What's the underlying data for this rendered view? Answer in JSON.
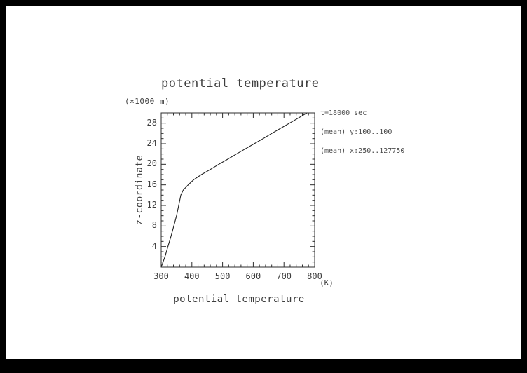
{
  "window": {
    "background_color": "#000000",
    "paper_color": "#ffffff",
    "text_color": "#3d3d3d"
  },
  "header": {
    "title": "potential temperature",
    "y_units_label": "(×1000 m)"
  },
  "axes": {
    "x_title": "potential temperature",
    "x_units_label": "(K)",
    "y_title": "z-coordinate"
  },
  "annotation": {
    "line1": "t=18000 sec",
    "line2": "(mean) y:100..100",
    "line3": "(mean) x:250..127750"
  },
  "chart_data": {
    "type": "line",
    "title": "potential temperature",
    "xlabel": "potential temperature",
    "ylabel": "z-coordinate",
    "x_unit": "K",
    "y_unit": "x1000 m",
    "xlim": [
      300,
      800
    ],
    "ylim": [
      0,
      30
    ],
    "x_ticks": [
      300,
      400,
      500,
      600,
      700,
      800
    ],
    "y_ticks": [
      4,
      8,
      12,
      16,
      20,
      24,
      28
    ],
    "x_minor_step": 20,
    "y_minor_step": 1,
    "grid": false,
    "legend": false,
    "frame_color": "#2e2e2e",
    "line_color": "#1f1f1f",
    "series": [
      {
        "name": "mean potential temperature profile, t=18000 sec",
        "points": [
          [
            300,
            0
          ],
          [
            312,
            2
          ],
          [
            322,
            4
          ],
          [
            332,
            6
          ],
          [
            341,
            8
          ],
          [
            350,
            10
          ],
          [
            357,
            12
          ],
          [
            364,
            14
          ],
          [
            372,
            15
          ],
          [
            388,
            16
          ],
          [
            406,
            17
          ],
          [
            431,
            18
          ],
          [
            460,
            19
          ],
          [
            488,
            20
          ],
          [
            517,
            21
          ],
          [
            545,
            22
          ],
          [
            574,
            23
          ],
          [
            603,
            24
          ],
          [
            632,
            25
          ],
          [
            660,
            26
          ],
          [
            689,
            27
          ],
          [
            718,
            28
          ],
          [
            747,
            29
          ],
          [
            775,
            30
          ]
        ]
      }
    ]
  }
}
